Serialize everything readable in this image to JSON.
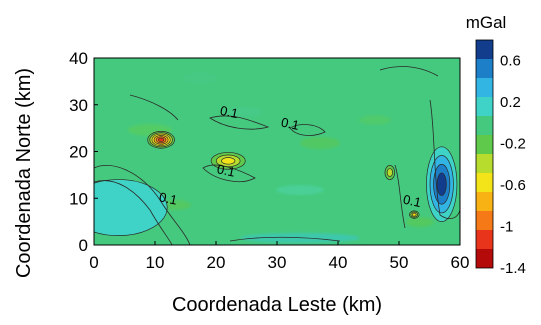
{
  "chart_data": {
    "type": "heatmap",
    "xlabel": "Coordenada Leste (km)",
    "ylabel": "Coordenada Norte (km)",
    "xlim": [
      0,
      60
    ],
    "ylim": [
      0,
      40
    ],
    "x_ticks": [
      "0",
      "10",
      "20",
      "30",
      "40",
      "50",
      "60"
    ],
    "y_ticks": [
      "0",
      "10",
      "20",
      "30",
      "40"
    ],
    "background_value": 0.0,
    "colorbar": {
      "title": "mGal",
      "range": [
        -1.4,
        0.8
      ],
      "tick_labels": [
        "0.6",
        "0.2",
        "-0.2",
        "-0.6",
        "-1",
        "-1.4"
      ],
      "tick_values": [
        0.6,
        0.2,
        -0.2,
        -0.6,
        -1.0,
        -1.4
      ],
      "levels": [
        {
          "value": -1.4,
          "color": "#b50a0a"
        },
        {
          "value": -1.2,
          "color": "#e8341b"
        },
        {
          "value": -1.0,
          "color": "#f57a17"
        },
        {
          "value": -0.8,
          "color": "#f9b214"
        },
        {
          "value": -0.6,
          "color": "#f2e419"
        },
        {
          "value": -0.4,
          "color": "#b8dc2e"
        },
        {
          "value": -0.2,
          "color": "#5ec94a"
        },
        {
          "value": 0.0,
          "color": "#45c97e"
        },
        {
          "value": 0.2,
          "color": "#3ed3c6"
        },
        {
          "value": 0.4,
          "color": "#33b5e3"
        },
        {
          "value": 0.6,
          "color": "#1d7fc8"
        },
        {
          "value": 0.8,
          "color": "#123c8c"
        }
      ]
    },
    "features": [
      {
        "x": 11,
        "y": 22.5,
        "rx": 2.2,
        "ry": 1.8,
        "value": -1.2
      },
      {
        "x": 22,
        "y": 18,
        "rx": 2.8,
        "ry": 1.8,
        "value": -0.6
      },
      {
        "x": 57,
        "y": 13,
        "rx": 2.5,
        "ry": 8,
        "value": 0.8
      },
      {
        "x": 4,
        "y": 8,
        "rx": 8,
        "ry": 6,
        "value": 0.3
      },
      {
        "x": 48.5,
        "y": 15.5,
        "rx": 0.8,
        "ry": 1.5,
        "value": -0.5
      },
      {
        "x": 52.5,
        "y": 6.5,
        "rx": 0.8,
        "ry": 0.8,
        "value": -0.6
      }
    ],
    "contour_labels": [
      {
        "text": "0.1",
        "x": 22,
        "y": 27.5
      },
      {
        "text": "0.1",
        "x": 32,
        "y": 25
      },
      {
        "text": "0.1",
        "x": 21.5,
        "y": 15
      },
      {
        "text": "0.1",
        "x": 12,
        "y": 9
      },
      {
        "text": "0.1",
        "x": 52,
        "y": 8.5
      }
    ]
  }
}
